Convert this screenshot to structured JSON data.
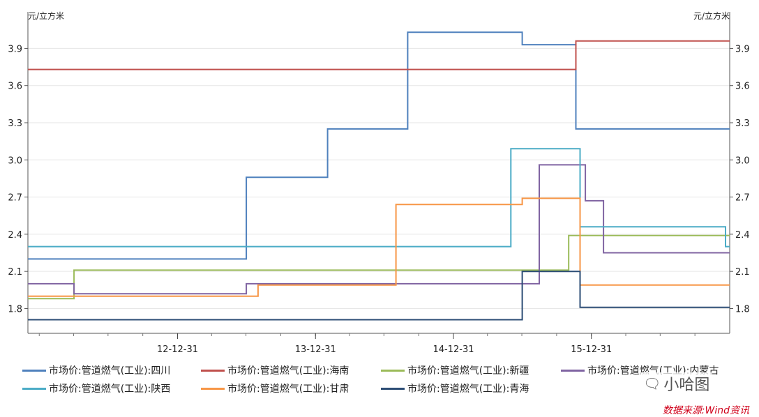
{
  "chart_data": {
    "type": "line",
    "step": true,
    "y_unit_left": "元/立方米",
    "y_unit_right": "元/立方米",
    "ylim": [
      1.6,
      4.15
    ],
    "yticks": [
      1.8,
      2.1,
      2.4,
      2.7,
      3.0,
      3.3,
      3.6,
      3.9
    ],
    "ytick_labels": [
      "1.8",
      "2.1",
      "2.4",
      "2.7",
      "3.0",
      "3.3",
      "3.6",
      "3.9"
    ],
    "xlim": [
      "2011-12-01",
      "2016-12-31"
    ],
    "xticks": [
      "2012-12-31",
      "2013-12-31",
      "2014-12-31",
      "2015-12-31"
    ],
    "xtick_labels": [
      "12-12-31",
      "13-12-31",
      "14-12-31",
      "15-12-31"
    ],
    "series": [
      {
        "name": "市场价:管道燃气(工业):四川",
        "color": "#4f81bd",
        "points": [
          [
            "2011-12-01",
            2.2
          ],
          [
            "2013-07-01",
            2.86
          ],
          [
            "2014-02-01",
            3.25
          ],
          [
            "2014-09-01",
            4.03
          ],
          [
            "2015-07-01",
            3.93
          ],
          [
            "2015-11-20",
            3.25
          ],
          [
            "2016-12-31",
            3.25
          ]
        ]
      },
      {
        "name": "市场价:管道燃气(工业):海南",
        "color": "#c0504d",
        "points": [
          [
            "2011-12-01",
            3.73
          ],
          [
            "2015-11-20",
            3.96
          ],
          [
            "2016-12-31",
            3.96
          ]
        ]
      },
      {
        "name": "市场价:管道燃气(工业):新疆",
        "color": "#9bbb59",
        "points": [
          [
            "2011-12-01",
            1.88
          ],
          [
            "2012-04-01",
            2.11
          ],
          [
            "2015-11-01",
            2.39
          ],
          [
            "2016-12-31",
            2.39
          ]
        ]
      },
      {
        "name": "市场价:管道燃气(工业):内蒙古",
        "color": "#8064a2",
        "points": [
          [
            "2011-12-01",
            2.0
          ],
          [
            "2012-04-01",
            1.92
          ],
          [
            "2013-07-01",
            2.0
          ],
          [
            "2015-08-15",
            2.96
          ],
          [
            "2015-12-15",
            2.67
          ],
          [
            "2016-02-01",
            2.25
          ],
          [
            "2016-12-31",
            2.25
          ]
        ]
      },
      {
        "name": "市场价:管道燃气(工业):陕西",
        "color": "#4bacc6",
        "points": [
          [
            "2011-12-01",
            2.3
          ],
          [
            "2015-06-01",
            3.09
          ],
          [
            "2015-12-01",
            2.46
          ],
          [
            "2016-12-20",
            2.3
          ],
          [
            "2016-12-31",
            2.3
          ]
        ]
      },
      {
        "name": "市场价:管道燃气(工业):甘肃",
        "color": "#f79646",
        "points": [
          [
            "2011-12-01",
            1.9
          ],
          [
            "2013-08-01",
            1.99
          ],
          [
            "2014-08-01",
            2.64
          ],
          [
            "2015-07-01",
            2.69
          ],
          [
            "2015-12-01",
            1.99
          ],
          [
            "2016-12-31",
            1.99
          ]
        ]
      },
      {
        "name": "市场价:管道燃气(工业):青海",
        "color": "#2c4d75",
        "points": [
          [
            "2011-12-01",
            1.71
          ],
          [
            "2015-07-01",
            2.1
          ],
          [
            "2015-12-01",
            1.81
          ],
          [
            "2016-12-31",
            1.81
          ]
        ]
      }
    ]
  },
  "watermark": {
    "text": "小哈图",
    "icon": "wechat-icon"
  },
  "source": "数据来源:Wind资讯"
}
